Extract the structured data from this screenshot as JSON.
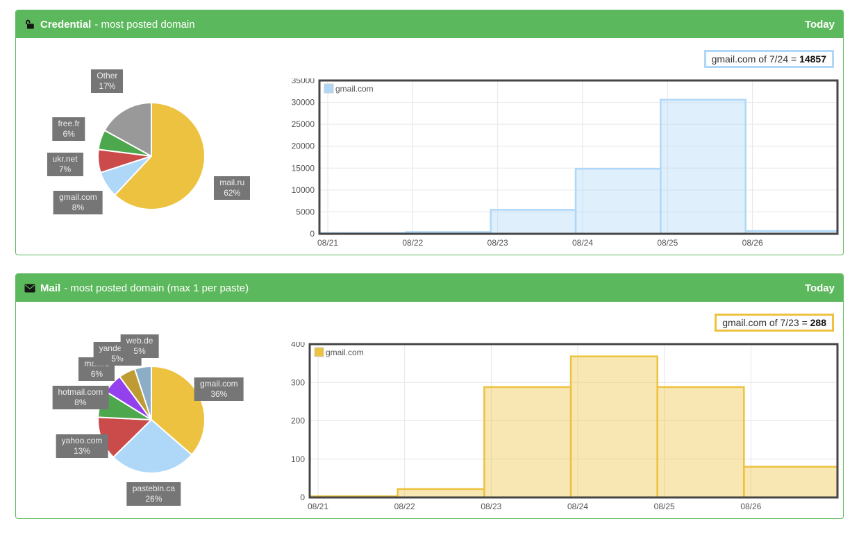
{
  "theme": {
    "panel_green": "#5cb85c",
    "label_box_bg": "#767676",
    "label_box_text": "#eeeeee",
    "axis_text_color": "#545454",
    "grid_color": "#e6e6e6",
    "chart_border_color": "#454545"
  },
  "panels": [
    {
      "header": {
        "icon": "unlock-icon",
        "title": "Credential",
        "subtitle": "- most posted domain",
        "action_label": "Today"
      },
      "tooltip": {
        "label": "gmail.com of 7/24 =",
        "value": "14857",
        "accent": "#afd8f8"
      }
    },
    {
      "header": {
        "icon": "mail-icon",
        "title": "Mail",
        "subtitle": "- most posted domain (max 1 per paste)",
        "action_label": "Today"
      },
      "tooltip": {
        "label": "gmail.com of 7/23 =",
        "value": "288",
        "accent": "#edc240"
      }
    }
  ],
  "chart_data": [
    {
      "type": "pie",
      "panel": "credential",
      "title": "",
      "label_distance": 125,
      "slices": [
        {
          "label": "mail.ru",
          "pct": 62,
          "pct_label": "62%",
          "color": "#edc240"
        },
        {
          "label": "gmail.com",
          "pct": 8,
          "pct_label": "8%",
          "color": "#afd8f8"
        },
        {
          "label": "ukr.net",
          "pct": 7,
          "pct_label": "7%",
          "color": "#cb4b4b"
        },
        {
          "label": "free.fr",
          "pct": 6,
          "pct_label": "6%",
          "color": "#4da74d"
        },
        {
          "label": "Other",
          "pct": 17,
          "pct_label": "17%",
          "color": "#999999"
        }
      ]
    },
    {
      "type": "bar",
      "panel": "credential",
      "title": "",
      "categories": [
        "08/21",
        "08/22",
        "08/23",
        "08/24",
        "08/25",
        "08/26"
      ],
      "series": [
        {
          "name": "gmail.com",
          "color": "#afd8f8",
          "values": [
            200,
            400,
            5500,
            14857,
            30600,
            650
          ]
        }
      ],
      "ylim": [
        0,
        35000
      ],
      "ytick": 5000,
      "grid": true,
      "legend_position": "top-left"
    },
    {
      "type": "pie",
      "panel": "mail",
      "title": "",
      "label_distance": 107,
      "slices": [
        {
          "label": "gmail.com",
          "pct": 36,
          "pct_label": "36%",
          "color": "#edc240"
        },
        {
          "label": "pastebin.ca",
          "pct": 26,
          "pct_label": "26%",
          "color": "#afd8f8"
        },
        {
          "label": "yahoo.com",
          "pct": 13,
          "pct_label": "13%",
          "color": "#cb4b4b"
        },
        {
          "label": "hotmail.com",
          "pct": 8,
          "pct_label": "8%",
          "color": "#4da74d"
        },
        {
          "label": "mail.ru",
          "pct": 6,
          "pct_label": "6%",
          "color": "#9440ed"
        },
        {
          "label": "yandex.ru",
          "pct": 5,
          "pct_label": "5%",
          "color": "#be9b33"
        },
        {
          "label": "web.de",
          "pct": 5,
          "pct_label": "5%",
          "color": "#8cadc6"
        }
      ]
    },
    {
      "type": "bar",
      "panel": "mail",
      "title": "",
      "categories": [
        "08/21",
        "08/22",
        "08/23",
        "08/24",
        "08/25",
        "08/26"
      ],
      "series": [
        {
          "name": "gmail.com",
          "color": "#edc240",
          "values": [
            3,
            22,
            288,
            368,
            288,
            80
          ]
        }
      ],
      "ylim": [
        0,
        400
      ],
      "ytick": 100,
      "grid": true,
      "legend_position": "top-left"
    }
  ]
}
